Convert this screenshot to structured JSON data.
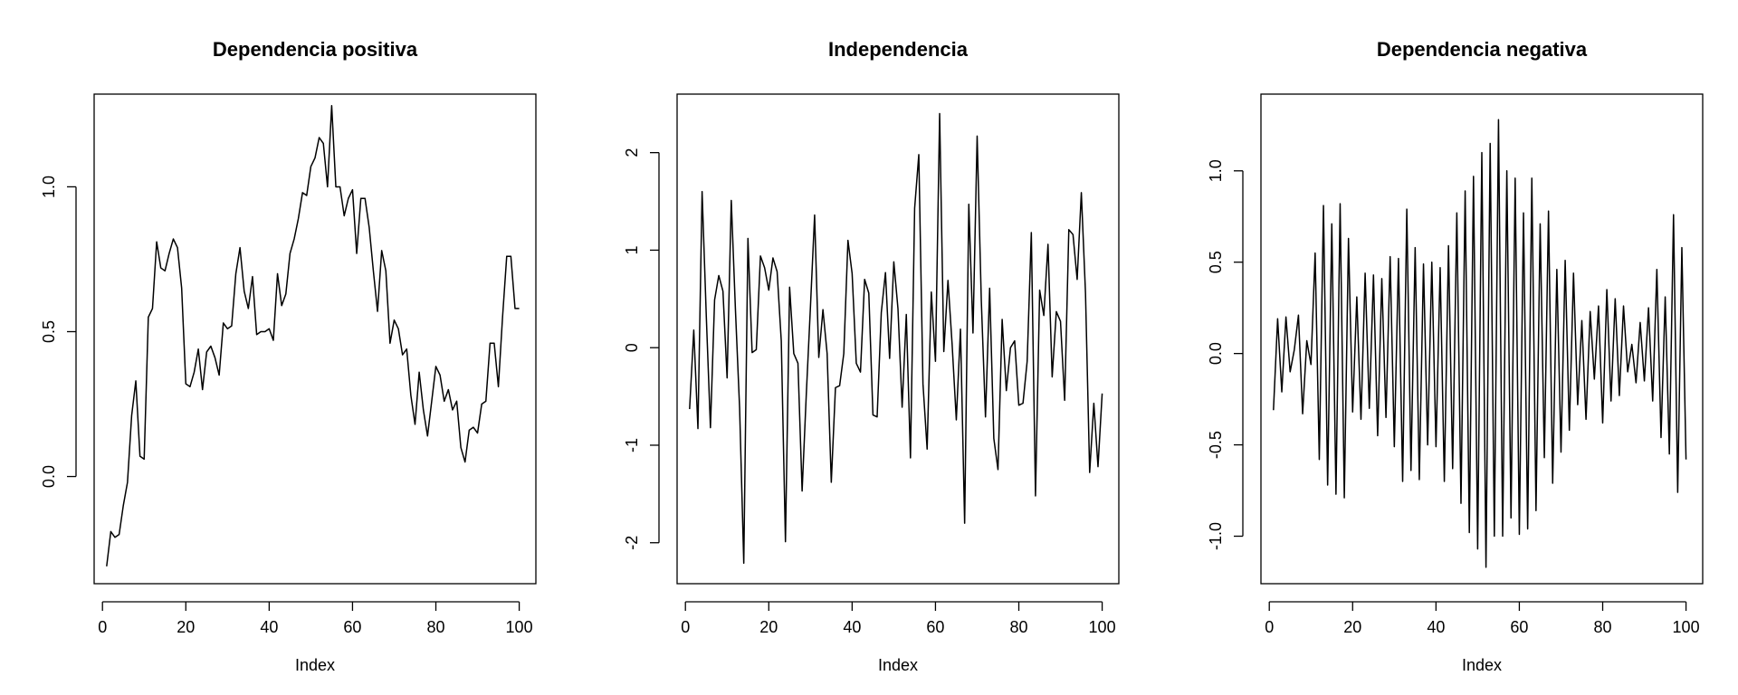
{
  "chart_data": [
    {
      "type": "line",
      "title": "Dependencia positiva",
      "xlabel": "Index",
      "ylabel": "",
      "xlim": [
        -2,
        104
      ],
      "ylim": [
        -0.37,
        1.32
      ],
      "xticks": [
        0,
        20,
        40,
        60,
        80,
        100
      ],
      "yticks": [
        0.0,
        0.5,
        1.0
      ],
      "xtick_labels": [
        "0",
        "20",
        "40",
        "60",
        "80",
        "100"
      ],
      "ytick_labels": [
        "0.0",
        "0.5",
        "1.0"
      ],
      "grid": false,
      "series": [
        {
          "x": [
            1,
            2,
            3,
            4,
            5,
            6,
            7,
            8,
            9,
            10,
            11,
            12,
            13,
            14,
            15,
            16,
            17,
            18,
            19,
            20,
            21,
            22,
            23,
            24,
            25,
            26,
            27,
            28,
            29,
            30,
            31,
            32,
            33,
            34,
            35,
            36,
            37,
            38,
            39,
            40,
            41,
            42,
            43,
            44,
            45,
            46,
            47,
            48,
            49,
            50,
            51,
            52,
            53,
            54,
            55,
            56,
            57,
            58,
            59,
            60,
            61,
            62,
            63,
            64,
            65,
            66,
            67,
            68,
            69,
            70,
            71,
            72,
            73,
            74,
            75,
            76,
            77,
            78,
            79,
            80,
            81,
            82,
            83,
            84,
            85,
            86,
            87,
            88,
            89,
            90,
            91,
            92,
            93,
            94,
            95,
            96,
            97,
            98,
            99,
            100
          ],
          "values": [
            -0.31,
            -0.19,
            -0.21,
            -0.2,
            -0.1,
            -0.02,
            0.21,
            0.33,
            0.07,
            0.06,
            0.55,
            0.58,
            0.81,
            0.72,
            0.71,
            0.77,
            0.82,
            0.79,
            0.65,
            0.32,
            0.31,
            0.36,
            0.44,
            0.3,
            0.43,
            0.45,
            0.41,
            0.35,
            0.53,
            0.51,
            0.52,
            0.7,
            0.79,
            0.64,
            0.58,
            0.69,
            0.49,
            0.5,
            0.5,
            0.51,
            0.47,
            0.7,
            0.59,
            0.63,
            0.77,
            0.82,
            0.89,
            0.98,
            0.97,
            1.07,
            1.1,
            1.17,
            1.15,
            1.0,
            1.28,
            1.0,
            1.0,
            0.9,
            0.96,
            0.99,
            0.77,
            0.96,
            0.96,
            0.86,
            0.71,
            0.57,
            0.78,
            0.71,
            0.46,
            0.54,
            0.51,
            0.42,
            0.44,
            0.28,
            0.18,
            0.36,
            0.23,
            0.14,
            0.26,
            0.38,
            0.35,
            0.26,
            0.3,
            0.23,
            0.26,
            0.1,
            0.05,
            0.16,
            0.17,
            0.15,
            0.25,
            0.26,
            0.46,
            0.46,
            0.31,
            0.55,
            0.76,
            0.76,
            0.58,
            0.58
          ]
        }
      ]
    },
    {
      "type": "line",
      "title": "Independencia",
      "xlabel": "Index",
      "ylabel": "",
      "xlim": [
        -2,
        104
      ],
      "ylim": [
        -2.42,
        2.6
      ],
      "xticks": [
        0,
        20,
        40,
        60,
        80,
        100
      ],
      "yticks": [
        -2,
        -1,
        0,
        1,
        2
      ],
      "xtick_labels": [
        "0",
        "20",
        "40",
        "60",
        "80",
        "100"
      ],
      "ytick_labels": [
        "-2",
        "-1",
        "0",
        "1",
        "2"
      ],
      "grid": false,
      "series": [
        {
          "x": [
            1,
            2,
            3,
            4,
            5,
            6,
            7,
            8,
            9,
            10,
            11,
            12,
            13,
            14,
            15,
            16,
            17,
            18,
            19,
            20,
            21,
            22,
            23,
            24,
            25,
            26,
            27,
            28,
            29,
            30,
            31,
            32,
            33,
            34,
            35,
            36,
            37,
            38,
            39,
            40,
            41,
            42,
            43,
            44,
            45,
            46,
            47,
            48,
            49,
            50,
            51,
            52,
            53,
            54,
            55,
            56,
            57,
            58,
            59,
            60,
            61,
            62,
            63,
            64,
            65,
            66,
            67,
            68,
            69,
            70,
            71,
            72,
            73,
            74,
            75,
            76,
            77,
            78,
            79,
            80,
            81,
            82,
            83,
            84,
            85,
            86,
            87,
            88,
            89,
            90,
            91,
            92,
            93,
            94,
            95,
            96,
            97,
            98,
            99,
            100
          ],
          "values": [
            -0.63,
            0.18,
            -0.83,
            1.6,
            0.33,
            -0.82,
            0.49,
            0.74,
            0.58,
            -0.31,
            1.51,
            0.39,
            -0.62,
            -2.21,
            1.12,
            -0.05,
            -0.02,
            0.94,
            0.82,
            0.59,
            0.92,
            0.78,
            0.07,
            -1.99,
            0.62,
            -0.06,
            -0.16,
            -1.47,
            -0.48,
            0.42,
            1.36,
            -0.1,
            0.39,
            -0.06,
            -1.38,
            -0.41,
            -0.39,
            -0.06,
            1.1,
            0.76,
            -0.16,
            -0.25,
            0.7,
            0.56,
            -0.69,
            -0.71,
            0.36,
            0.77,
            -0.11,
            0.88,
            0.4,
            -0.61,
            0.34,
            -1.13,
            1.43,
            1.98,
            -0.37,
            -1.04,
            0.57,
            -0.14,
            2.4,
            -0.04,
            0.69,
            0.03,
            -0.74,
            0.19,
            -1.8,
            1.47,
            0.15,
            2.17,
            0.48,
            -0.71,
            0.61,
            -0.93,
            -1.25,
            0.29,
            -0.44,
            0.0,
            0.07,
            -0.59,
            -0.57,
            -0.14,
            1.18,
            -1.52,
            0.59,
            0.33,
            1.06,
            -0.3,
            0.37,
            0.27,
            -0.54,
            1.21,
            1.16,
            0.7,
            1.59,
            0.56,
            -1.28,
            -0.57,
            -1.22,
            -0.47
          ]
        }
      ]
    },
    {
      "type": "line",
      "title": "Dependencia negativa",
      "xlabel": "Index",
      "ylabel": "",
      "xlim": [
        -2,
        104
      ],
      "ylim": [
        -1.26,
        1.42
      ],
      "xticks": [
        0,
        20,
        40,
        60,
        80,
        100
      ],
      "yticks": [
        -1.0,
        -0.5,
        0.0,
        0.5,
        1.0
      ],
      "xtick_labels": [
        "0",
        "20",
        "40",
        "60",
        "80",
        "100"
      ],
      "ytick_labels": [
        "-1.0",
        "-0.5",
        "0.0",
        "0.5",
        "1.0"
      ],
      "grid": false,
      "series": [
        {
          "x": [
            1,
            2,
            3,
            4,
            5,
            6,
            7,
            8,
            9,
            10,
            11,
            12,
            13,
            14,
            15,
            16,
            17,
            18,
            19,
            20,
            21,
            22,
            23,
            24,
            25,
            26,
            27,
            28,
            29,
            30,
            31,
            32,
            33,
            34,
            35,
            36,
            37,
            38,
            39,
            40,
            41,
            42,
            43,
            44,
            45,
            46,
            47,
            48,
            49,
            50,
            51,
            52,
            53,
            54,
            55,
            56,
            57,
            58,
            59,
            60,
            61,
            62,
            63,
            64,
            65,
            66,
            67,
            68,
            69,
            70,
            71,
            72,
            73,
            74,
            75,
            76,
            77,
            78,
            79,
            80,
            81,
            82,
            83,
            84,
            85,
            86,
            87,
            88,
            89,
            90,
            91,
            92,
            93,
            94,
            95,
            96,
            97,
            98,
            99,
            100
          ],
          "values": [
            -0.31,
            0.19,
            -0.21,
            0.2,
            -0.1,
            0.02,
            0.21,
            -0.33,
            0.07,
            -0.06,
            0.55,
            -0.58,
            0.81,
            -0.72,
            0.71,
            -0.77,
            0.82,
            -0.79,
            0.63,
            -0.32,
            0.31,
            -0.36,
            0.44,
            -0.3,
            0.43,
            -0.45,
            0.41,
            -0.35,
            0.53,
            -0.51,
            0.52,
            -0.7,
            0.79,
            -0.64,
            0.58,
            -0.69,
            0.49,
            -0.5,
            0.5,
            -0.51,
            0.47,
            -0.7,
            0.59,
            -0.63,
            0.77,
            -0.82,
            0.89,
            -0.98,
            0.97,
            -1.07,
            1.1,
            -1.17,
            1.15,
            -1.0,
            1.28,
            -1.0,
            1.0,
            -0.9,
            0.96,
            -0.99,
            0.77,
            -0.96,
            0.96,
            -0.86,
            0.71,
            -0.57,
            0.78,
            -0.71,
            0.46,
            -0.54,
            0.51,
            -0.42,
            0.44,
            -0.28,
            0.18,
            -0.36,
            0.23,
            -0.14,
            0.26,
            -0.38,
            0.35,
            -0.26,
            0.3,
            -0.23,
            0.26,
            -0.1,
            0.05,
            -0.16,
            0.17,
            -0.15,
            0.25,
            -0.26,
            0.46,
            -0.46,
            0.31,
            -0.55,
            0.76,
            -0.76,
            0.58,
            -0.58
          ]
        }
      ]
    }
  ]
}
